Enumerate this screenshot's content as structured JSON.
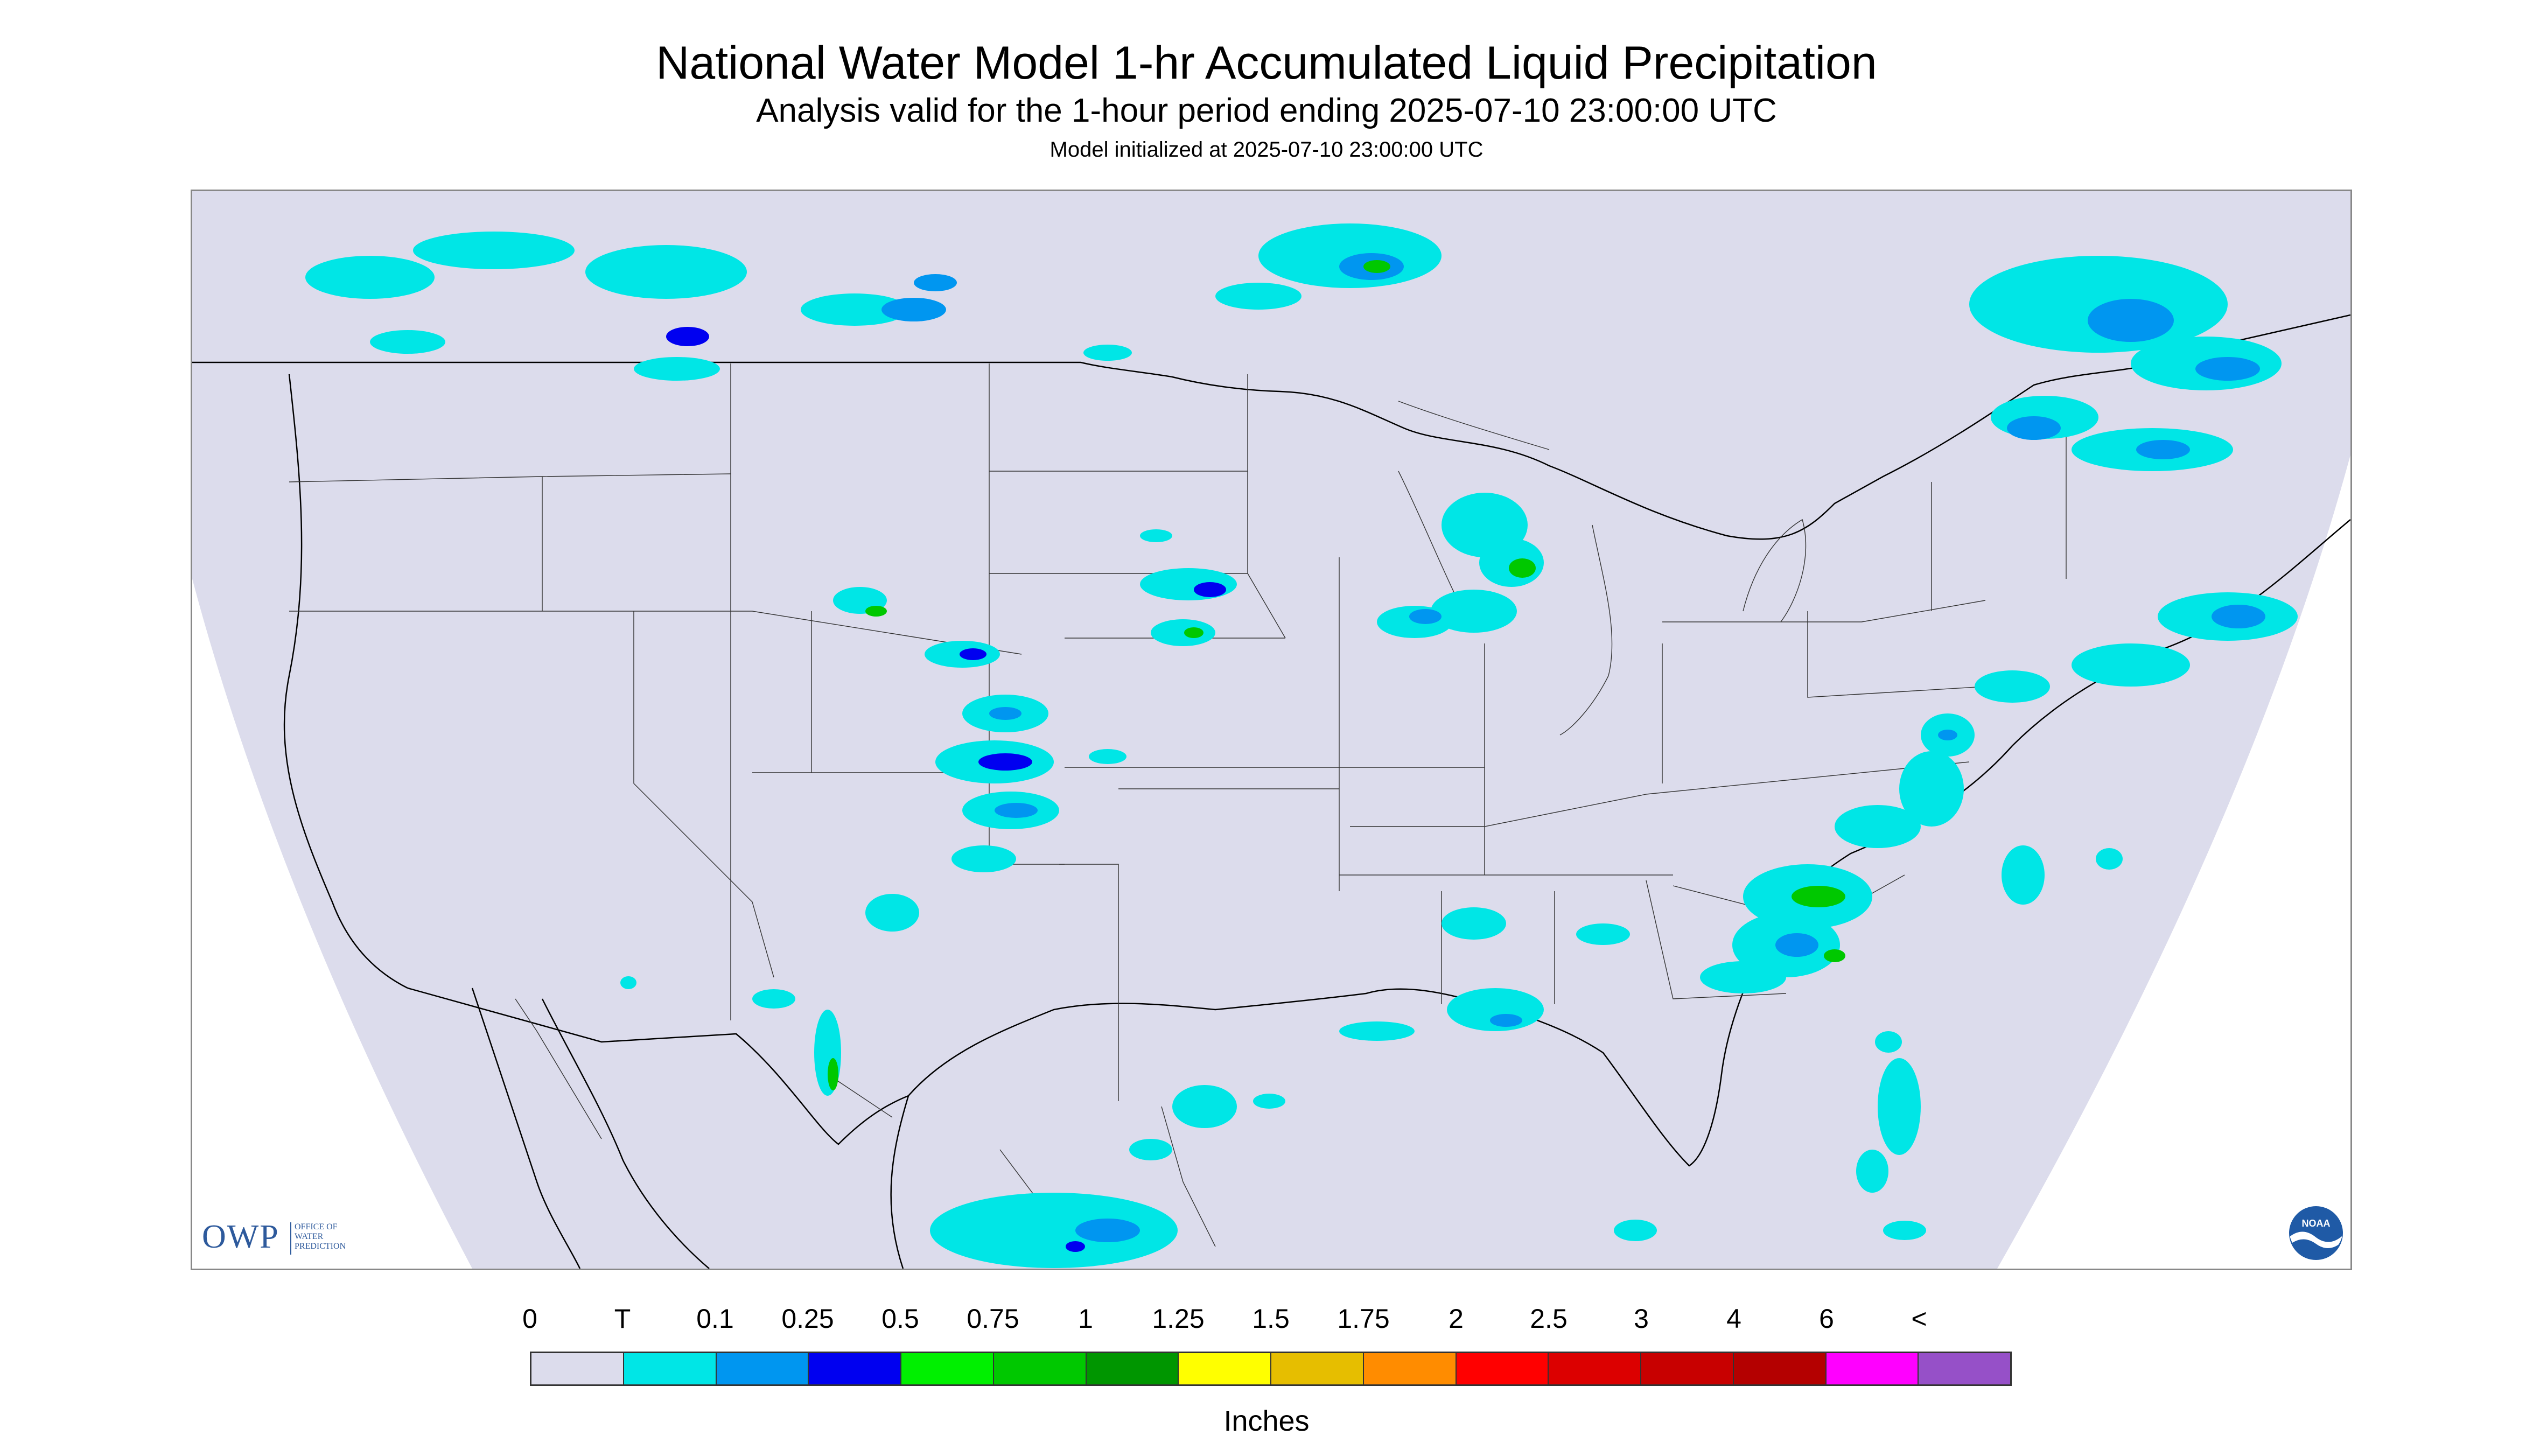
{
  "header": {
    "title": "National Water Model 1-hr Accumulated Liquid Precipitation",
    "subtitle": "Analysis valid for the 1-hour period ending 2025-07-10 23:00:00 UTC",
    "init_line": "Model initialized at 2025-07-10 23:00:00 UTC"
  },
  "map": {
    "background_color": "#dcdcec",
    "outside_color": "#ffffff",
    "boundary_color": "#000000",
    "precip_colors": {
      "trace": "#00e6e6",
      "light": "#0096f0",
      "moderate": "#0000f0",
      "heavy": "#00c800"
    }
  },
  "logos": {
    "owp_letters": "OWP",
    "owp_line1": "OFFICE OF",
    "owp_line2": "WATER",
    "owp_line3": "PREDICTION",
    "noaa_text": "NOAA"
  },
  "legend": {
    "labels": [
      "0",
      "T",
      "0.1",
      "0.25",
      "0.5",
      "0.75",
      "1",
      "1.25",
      "1.5",
      "1.75",
      "2",
      "2.5",
      "3",
      "4",
      "6",
      "<"
    ],
    "colors": [
      "#dcdcec",
      "#00e6e6",
      "#0096f0",
      "#0000f0",
      "#00f000",
      "#00c800",
      "#009600",
      "#ffff00",
      "#e6be00",
      "#ff8c00",
      "#ff0000",
      "#dc0000",
      "#c80000",
      "#b40000",
      "#ff00ff",
      "#9650c8"
    ],
    "units": "Inches"
  }
}
